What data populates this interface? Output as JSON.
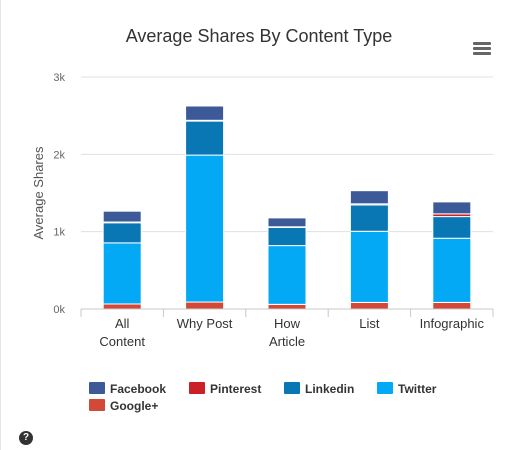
{
  "chart_data": {
    "type": "bar",
    "stacked": true,
    "title": "Average Shares By Content Type",
    "ylabel": "Average Shares",
    "xlabel": "",
    "ylim": [
      0,
      3000
    ],
    "yticks": [
      {
        "value": 0,
        "label": "0k"
      },
      {
        "value": 1000,
        "label": "1k"
      },
      {
        "value": 2000,
        "label": "2k"
      },
      {
        "value": 3000,
        "label": "3k"
      }
    ],
    "categories": [
      [
        "All",
        "Content"
      ],
      [
        "Why Post"
      ],
      [
        "How",
        "Article"
      ],
      [
        "List"
      ],
      [
        "Infographic"
      ]
    ],
    "stack_order": [
      "Google+",
      "Twitter",
      "Linkedin",
      "Pinterest",
      "Facebook"
    ],
    "series": [
      {
        "name": "Facebook",
        "color": "#3d5a98",
        "values": [
          140,
          185,
          115,
          170,
          155
        ]
      },
      {
        "name": "Pinterest",
        "color": "#cb2027",
        "values": [
          10,
          10,
          8,
          15,
          35
        ]
      },
      {
        "name": "Linkedin",
        "color": "#0a77b5",
        "values": [
          260,
          440,
          235,
          340,
          280
        ]
      },
      {
        "name": "Twitter",
        "color": "#03a9f4",
        "values": [
          790,
          1900,
          760,
          920,
          830
        ]
      },
      {
        "name": "Google+",
        "color": "#d34836",
        "values": [
          65,
          90,
          60,
          85,
          85
        ]
      }
    ],
    "legend": {
      "position": "bottom-left"
    }
  },
  "ui": {
    "menu_icon": "hamburger-menu-icon",
    "help_icon": "question-circle-icon",
    "help_glyph": "?"
  }
}
